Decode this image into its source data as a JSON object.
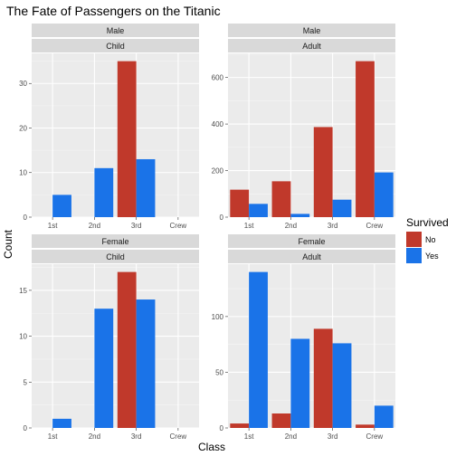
{
  "chart_data": {
    "type": "bar",
    "title": "The Fate of Passengers on the Titanic",
    "xlabel": "Class",
    "ylabel": "Count",
    "categories": [
      "1st",
      "2nd",
      "3rd",
      "Crew"
    ],
    "legend": {
      "title": "Survived",
      "placement": "right",
      "entries": [
        {
          "name": "No",
          "color": "#c0392b"
        },
        {
          "name": "Yes",
          "color": "#1a73e8"
        }
      ]
    },
    "grid": true,
    "panels": [
      {
        "strip_top": "Male",
        "strip_bottom": "Child",
        "ylim": [
          0,
          36.75
        ],
        "yticks": [
          0,
          10,
          20,
          30
        ],
        "series": [
          {
            "name": "No",
            "values": [
              0,
              0,
              35,
              0
            ]
          },
          {
            "name": "Yes",
            "values": [
              5,
              11,
              13,
              0
            ]
          }
        ]
      },
      {
        "strip_top": "Male",
        "strip_bottom": "Adult",
        "ylim": [
          0,
          703.5
        ],
        "yticks": [
          0,
          200,
          400,
          600
        ],
        "series": [
          {
            "name": "No",
            "values": [
              118,
              154,
              387,
              670
            ]
          },
          {
            "name": "Yes",
            "values": [
              57,
              14,
              75,
              192
            ]
          }
        ]
      },
      {
        "strip_top": "Female",
        "strip_bottom": "Child",
        "ylim": [
          0,
          17.85
        ],
        "yticks": [
          0,
          5,
          10,
          15
        ],
        "series": [
          {
            "name": "No",
            "values": [
              0,
              0,
              17,
              0
            ]
          },
          {
            "name": "Yes",
            "values": [
              1,
              13,
              14,
              0
            ]
          }
        ]
      },
      {
        "strip_top": "Female",
        "strip_bottom": "Adult",
        "ylim": [
          0,
          147
        ],
        "yticks": [
          0,
          50,
          100
        ],
        "series": [
          {
            "name": "No",
            "values": [
              4,
              13,
              89,
              3
            ]
          },
          {
            "name": "Yes",
            "values": [
              140,
              80,
              76,
              20
            ]
          }
        ]
      }
    ]
  }
}
